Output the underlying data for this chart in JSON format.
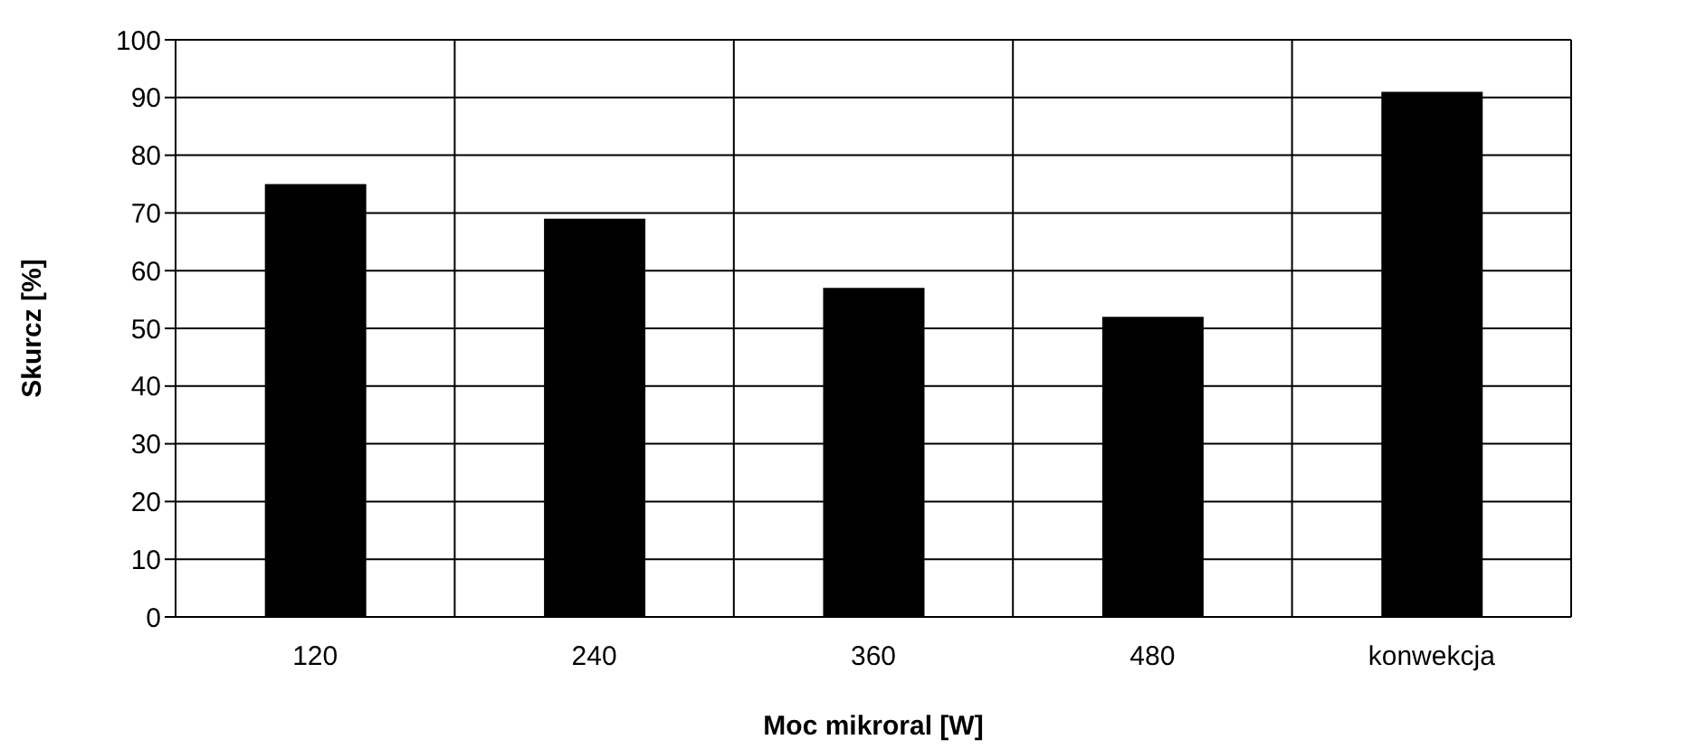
{
  "chart_data": {
    "type": "bar",
    "xlabel": "Moc mikroral [W]",
    "ylabel": "Skurcz [%]",
    "categories": [
      "120",
      "240",
      "360",
      "480",
      "konwekcja"
    ],
    "values": [
      75,
      69,
      57,
      52,
      91
    ],
    "color": "#000000",
    "ylim": [
      0,
      100
    ],
    "yticks": [
      0,
      10,
      20,
      30,
      40,
      50,
      60,
      70,
      80,
      90,
      100
    ],
    "grid": true
  }
}
